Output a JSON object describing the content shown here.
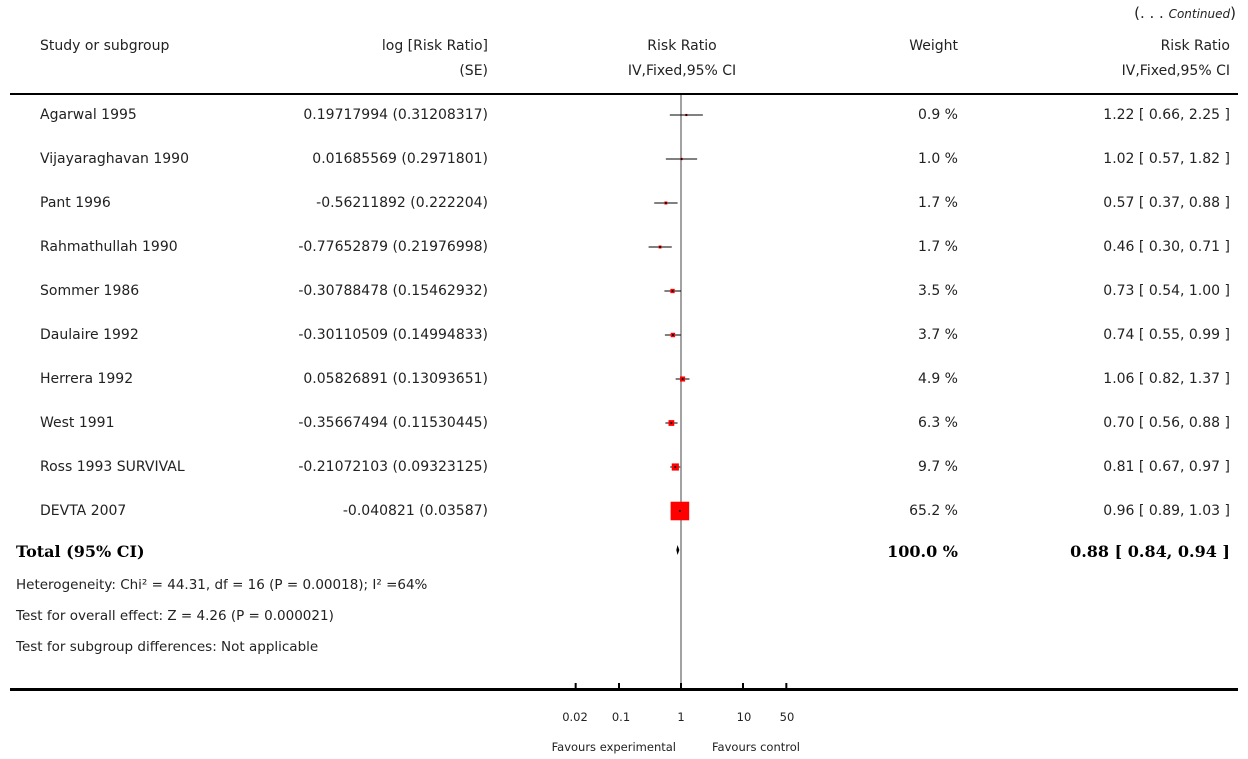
{
  "header": {
    "continued_open": "(. . . ",
    "continued_word": "Continued",
    "continued_close": ")",
    "study": "Study or subgroup",
    "logrr_line1": "log [Risk Ratio]",
    "logrr_line2": "(SE)",
    "plot_line1": "Risk Ratio",
    "plot_line2": "IV,Fixed,95% CI",
    "weight": "Weight",
    "rr_line1": "Risk Ratio",
    "rr_line2": "IV,Fixed,95% CI"
  },
  "rows": [
    {
      "study": "Agarwal 1995",
      "logrr_se": "0.19717994 (0.31208317)",
      "weight": "0.9 %",
      "rr_text": "1.22 [ 0.66, 2.25 ]"
    },
    {
      "study": "Vijayaraghavan 1990",
      "logrr_se": "0.01685569 (0.2971801)",
      "weight": "1.0 %",
      "rr_text": "1.02 [ 0.57, 1.82 ]"
    },
    {
      "study": "Pant 1996",
      "logrr_se": "-0.56211892 (0.222204)",
      "weight": "1.7 %",
      "rr_text": "0.57 [ 0.37, 0.88 ]"
    },
    {
      "study": "Rahmathullah 1990",
      "logrr_se": "-0.77652879 (0.21976998)",
      "weight": "1.7 %",
      "rr_text": "0.46 [ 0.30, 0.71 ]"
    },
    {
      "study": "Sommer 1986",
      "logrr_se": "-0.30788478 (0.15462932)",
      "weight": "3.5 %",
      "rr_text": "0.73 [ 0.54, 1.00 ]"
    },
    {
      "study": "Daulaire 1992",
      "logrr_se": "-0.30110509 (0.14994833)",
      "weight": "3.7 %",
      "rr_text": "0.74 [ 0.55, 0.99 ]"
    },
    {
      "study": "Herrera 1992",
      "logrr_se": "0.05826891 (0.13093651)",
      "weight": "4.9 %",
      "rr_text": "1.06 [ 0.82, 1.37 ]"
    },
    {
      "study": "West 1991",
      "logrr_se": "-0.35667494 (0.11530445)",
      "weight": "6.3 %",
      "rr_text": "0.70 [ 0.56, 0.88 ]"
    },
    {
      "study": "Ross 1993 SURVIVAL",
      "logrr_se": "-0.21072103 (0.09323125)",
      "weight": "9.7 %",
      "rr_text": "0.81 [ 0.67, 0.97 ]"
    },
    {
      "study": "DEVTA 2007",
      "logrr_se": "-0.040821 (0.03587)",
      "weight": "65.2 %",
      "rr_text": "0.96 [ 0.89, 1.03 ]"
    }
  ],
  "total": {
    "label": "Total (95% CI)",
    "weight": "100.0 %",
    "rr_text": "0.88 [ 0.84, 0.94 ]"
  },
  "notes": {
    "heterogeneity": "Heterogeneity: Chi² = 44.31, df = 16 (P = 0.00018); I² =64%",
    "overall": "Test for overall effect: Z = 4.26 (P = 0.000021)",
    "subgroup": "Test for subgroup differences: Not applicable"
  },
  "axis": {
    "tick_labels": [
      "0.02",
      "0.1",
      "1",
      "10",
      "50"
    ],
    "favours_left": "Favours experimental",
    "favours_right": "Favours control"
  },
  "colors": {
    "weight_box": "#ff0000",
    "line": "#000000"
  },
  "chart_data": {
    "type": "forest",
    "xscale": "log",
    "xlim": [
      0.02,
      50
    ],
    "xticks": [
      0.02,
      0.1,
      1,
      10,
      50
    ],
    "studies": [
      {
        "name": "Agarwal 1995",
        "rr": 1.22,
        "lo": 0.66,
        "hi": 2.25,
        "weight": 0.9
      },
      {
        "name": "Vijayaraghavan 1990",
        "rr": 1.02,
        "lo": 0.57,
        "hi": 1.82,
        "weight": 1.0
      },
      {
        "name": "Pant 1996",
        "rr": 0.57,
        "lo": 0.37,
        "hi": 0.88,
        "weight": 1.7
      },
      {
        "name": "Rahmathullah 1990",
        "rr": 0.46,
        "lo": 0.3,
        "hi": 0.71,
        "weight": 1.7
      },
      {
        "name": "Sommer 1986",
        "rr": 0.73,
        "lo": 0.54,
        "hi": 1.0,
        "weight": 3.5
      },
      {
        "name": "Daulaire 1992",
        "rr": 0.74,
        "lo": 0.55,
        "hi": 0.99,
        "weight": 3.7
      },
      {
        "name": "Herrera 1992",
        "rr": 1.06,
        "lo": 0.82,
        "hi": 1.37,
        "weight": 4.9
      },
      {
        "name": "West 1991",
        "rr": 0.7,
        "lo": 0.56,
        "hi": 0.88,
        "weight": 6.3
      },
      {
        "name": "Ross 1993 SURVIVAL",
        "rr": 0.81,
        "lo": 0.67,
        "hi": 0.97,
        "weight": 9.7
      },
      {
        "name": "DEVTA 2007",
        "rr": 0.96,
        "lo": 0.89,
        "hi": 1.03,
        "weight": 65.2
      }
    ],
    "total": {
      "rr": 0.88,
      "lo": 0.84,
      "hi": 0.94,
      "weight": 100.0
    }
  }
}
